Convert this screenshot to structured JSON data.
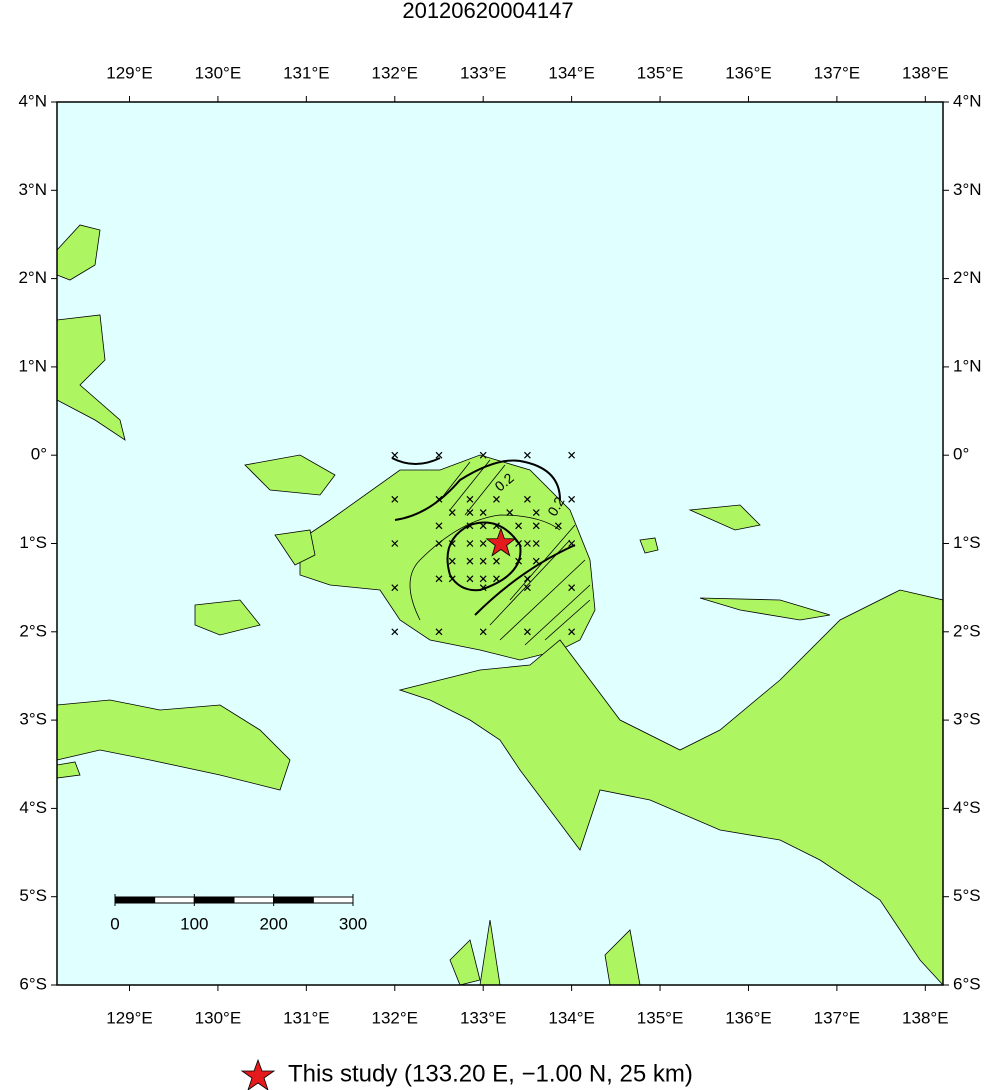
{
  "map": {
    "title": "20120620004147",
    "lonlim": [
      128.18,
      138.2
    ],
    "latlim": [
      -6,
      4
    ],
    "lonticks": [
      {
        "value": 129,
        "label": "129°E"
      },
      {
        "value": 130,
        "label": "130°E"
      },
      {
        "value": 131,
        "label": "131°E"
      },
      {
        "value": 132,
        "label": "132°E"
      },
      {
        "value": 133,
        "label": "133°E"
      },
      {
        "value": 134,
        "label": "134°E"
      },
      {
        "value": 135,
        "label": "135°E"
      },
      {
        "value": 136,
        "label": "136°E"
      },
      {
        "value": 137,
        "label": "137°E"
      },
      {
        "value": 138,
        "label": "138°E"
      }
    ],
    "latticks": [
      {
        "value": 4,
        "label": "4°N"
      },
      {
        "value": 3,
        "label": "3°N"
      },
      {
        "value": 2,
        "label": "2°N"
      },
      {
        "value": 1,
        "label": "1°N"
      },
      {
        "value": 0,
        "label": "0°"
      },
      {
        "value": -1,
        "label": "1°S"
      },
      {
        "value": -2,
        "label": "2°S"
      },
      {
        "value": -3,
        "label": "3°S"
      },
      {
        "value": -4,
        "label": "4°S"
      },
      {
        "value": -5,
        "label": "5°S"
      },
      {
        "value": -6,
        "label": "6°S"
      }
    ],
    "contour_labels": [
      "0.2",
      "0.2"
    ],
    "epicenter": {
      "lon": 133.2,
      "lat": -1.0
    },
    "grid_points": [
      [
        132,
        0
      ],
      [
        132.5,
        0
      ],
      [
        133,
        0
      ],
      [
        133.5,
        0
      ],
      [
        134,
        0
      ],
      [
        132,
        -0.5
      ],
      [
        132.5,
        -0.5
      ],
      [
        132.85,
        -0.5
      ],
      [
        133.15,
        -0.5
      ],
      [
        133.5,
        -0.5
      ],
      [
        134,
        -0.5
      ],
      [
        132.65,
        -0.65
      ],
      [
        132.85,
        -0.65
      ],
      [
        133,
        -0.65
      ],
      [
        133.3,
        -0.65
      ],
      [
        133.6,
        -0.65
      ],
      [
        132.5,
        -0.8
      ],
      [
        132.85,
        -0.8
      ],
      [
        133,
        -0.8
      ],
      [
        133.15,
        -0.8
      ],
      [
        133.4,
        -0.8
      ],
      [
        133.6,
        -0.8
      ],
      [
        133.85,
        -0.8
      ],
      [
        132,
        -1
      ],
      [
        132.5,
        -1
      ],
      [
        132.65,
        -1
      ],
      [
        132.85,
        -1
      ],
      [
        133,
        -1
      ],
      [
        133.4,
        -1
      ],
      [
        133.5,
        -1
      ],
      [
        133.6,
        -1
      ],
      [
        134,
        -1
      ],
      [
        132.65,
        -1.2
      ],
      [
        132.85,
        -1.2
      ],
      [
        133,
        -1.2
      ],
      [
        133.15,
        -1.2
      ],
      [
        133.4,
        -1.2
      ],
      [
        133.6,
        -1.2
      ],
      [
        132.5,
        -1.4
      ],
      [
        132.65,
        -1.4
      ],
      [
        132.85,
        -1.4
      ],
      [
        133,
        -1.4
      ],
      [
        133.15,
        -1.4
      ],
      [
        133.5,
        -1.4
      ],
      [
        132,
        -1.5
      ],
      [
        133,
        -1.5
      ],
      [
        133.5,
        -1.5
      ],
      [
        134,
        -1.5
      ],
      [
        132,
        -2
      ],
      [
        132.5,
        -2
      ],
      [
        133,
        -2
      ],
      [
        133.5,
        -2
      ],
      [
        134,
        -2
      ]
    ],
    "scale_bar": {
      "lim": [
        0,
        300
      ],
      "ticks": [
        0,
        100,
        200,
        300
      ]
    },
    "legend": "This study (133.20 E, −1.00 N, 25 km)"
  }
}
